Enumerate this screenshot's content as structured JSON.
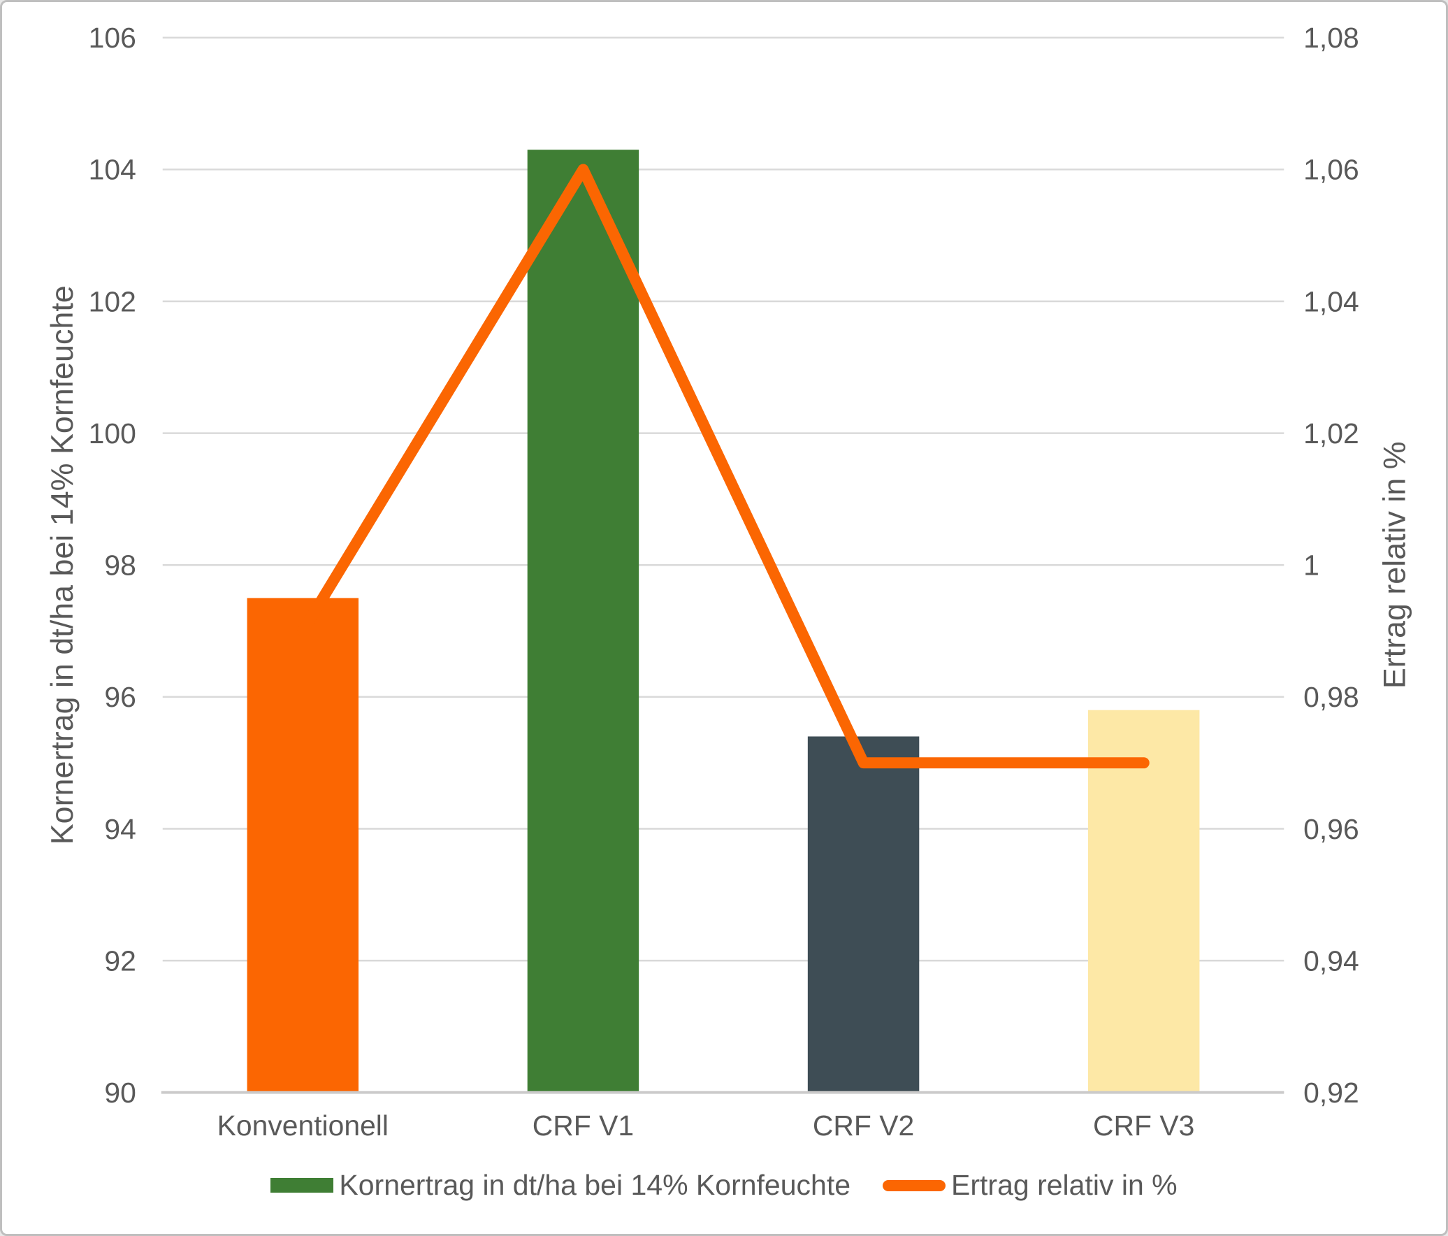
{
  "chart_data": {
    "type": "combo",
    "categories": [
      "Konventionell",
      "CRF V1",
      "CRF V2",
      "CRF V3"
    ],
    "series": [
      {
        "name": "Kornertrag in dt/ha bei 14% Kornfeuchte",
        "type": "bar",
        "axis": "left",
        "values": [
          97.5,
          104.3,
          95.4,
          95.8
        ],
        "bar_colors": [
          "#FB6602",
          "#3F7E34",
          "#3E4D55",
          "#FDE8A6"
        ]
      },
      {
        "name": "Ertrag relativ in %",
        "type": "line",
        "axis": "right",
        "values": [
          0.99,
          1.06,
          0.97,
          0.97
        ],
        "color": "#FB6602"
      }
    ],
    "left_axis": {
      "title": "Kornertrag in dt/ha bei 14% Kornfeuchte",
      "min": 90,
      "max": 106,
      "step": 2,
      "tick_labels": [
        "90",
        "92",
        "94",
        "96",
        "98",
        "100",
        "102",
        "104",
        "106"
      ]
    },
    "right_axis": {
      "title": "Ertrag relativ in %",
      "min": 0.92,
      "max": 1.08,
      "step": 0.02,
      "tick_labels": [
        "0,92",
        "0,94",
        "0,96",
        "0,98",
        "1",
        "1,02",
        "1,04",
        "1,06",
        "1,08"
      ]
    },
    "legend": [
      {
        "label": "Kornertrag in dt/ha bei 14% Kornfeuchte",
        "marker": "bar",
        "color": "#3F7E34"
      },
      {
        "label": "Ertrag relativ in %",
        "marker": "line",
        "color": "#FB6602"
      }
    ],
    "grid": true,
    "legend_position": "bottom"
  },
  "style": {
    "text_color": "#595959",
    "gridline_color": "#D9D9D9",
    "axisline_color": "#CBCACA",
    "frame_border_color": "#BFBFBF",
    "background": "#FFFFFF"
  }
}
